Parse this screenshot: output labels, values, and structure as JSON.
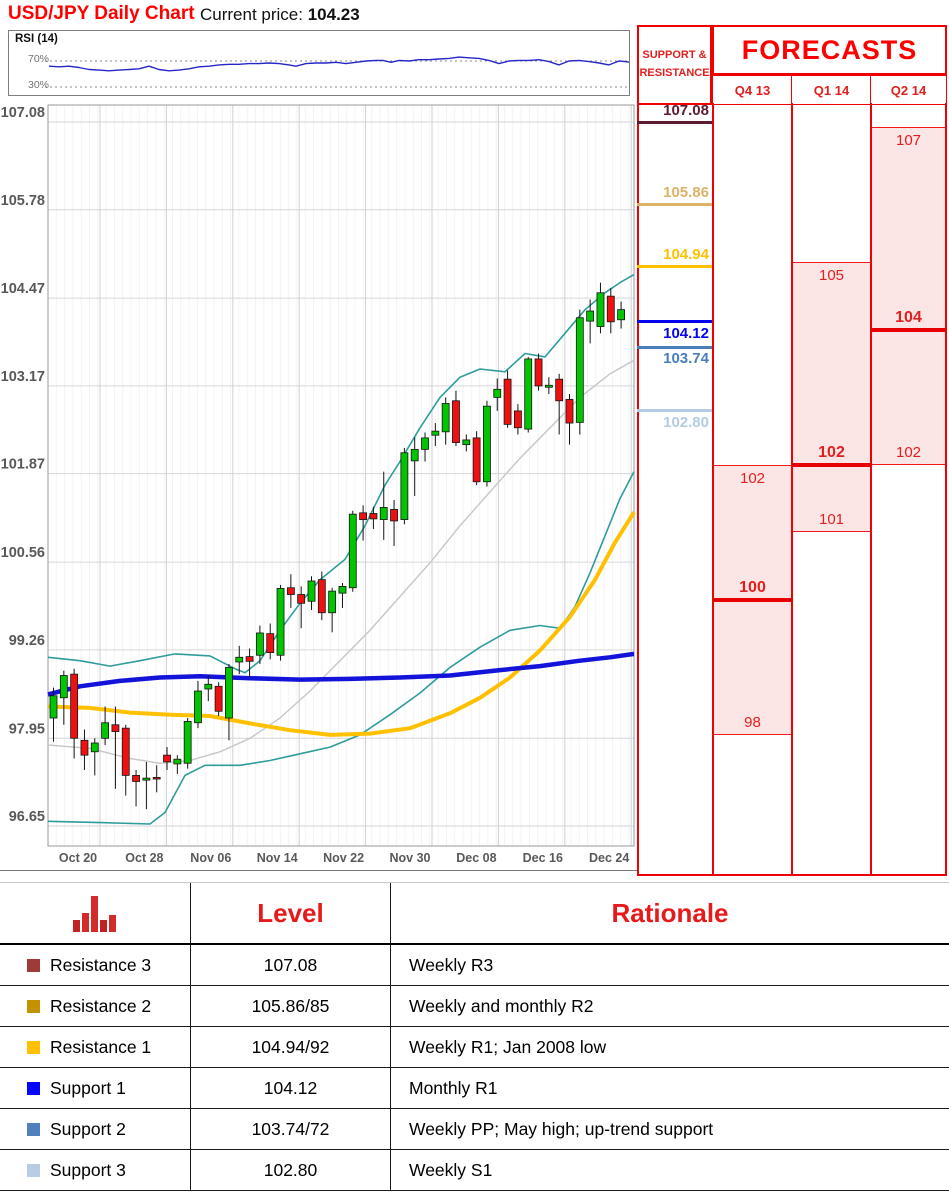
{
  "header": {
    "title": "USD/JPY Daily Chart",
    "price_label": "Current price:",
    "price": "104.23"
  },
  "rsi": {
    "label": "RSI (14)",
    "upper": "70%",
    "lower": "30%",
    "series": [
      [
        48,
        62
      ],
      [
        58,
        61
      ],
      [
        68,
        62
      ],
      [
        78,
        60
      ],
      [
        88,
        57
      ],
      [
        98,
        56
      ],
      [
        108,
        55
      ],
      [
        118,
        56
      ],
      [
        128,
        57
      ],
      [
        138,
        58
      ],
      [
        148,
        62
      ],
      [
        158,
        57
      ],
      [
        168,
        55
      ],
      [
        178,
        56
      ],
      [
        188,
        58
      ],
      [
        198,
        61
      ],
      [
        208,
        62
      ],
      [
        218,
        64
      ],
      [
        228,
        65
      ],
      [
        238,
        65
      ],
      [
        248,
        66
      ],
      [
        258,
        66
      ],
      [
        268,
        67
      ],
      [
        278,
        66
      ],
      [
        288,
        64
      ],
      [
        295,
        62
      ],
      [
        305,
        66
      ],
      [
        315,
        67
      ],
      [
        325,
        67
      ],
      [
        335,
        68
      ],
      [
        345,
        66
      ],
      [
        355,
        68
      ],
      [
        365,
        70
      ],
      [
        375,
        71
      ],
      [
        382,
        71
      ],
      [
        390,
        68
      ],
      [
        398,
        71
      ],
      [
        408,
        70
      ],
      [
        418,
        72
      ],
      [
        428,
        72
      ],
      [
        438,
        73
      ],
      [
        448,
        74
      ],
      [
        458,
        76
      ],
      [
        468,
        75
      ],
      [
        478,
        74
      ],
      [
        488,
        71
      ],
      [
        498,
        66
      ],
      [
        508,
        70
      ],
      [
        518,
        71
      ],
      [
        528,
        71
      ],
      [
        538,
        72
      ],
      [
        548,
        69
      ],
      [
        558,
        64
      ],
      [
        568,
        70
      ],
      [
        578,
        71
      ],
      [
        588,
        69
      ],
      [
        598,
        67
      ],
      [
        608,
        64
      ],
      [
        618,
        70
      ],
      [
        624,
        69
      ],
      [
        630,
        68
      ]
    ]
  },
  "chart_data": {
    "type": "candlestick",
    "title": "USD/JPY Daily Chart",
    "y_ticks": [
      "107.08",
      "105.78",
      "104.47",
      "103.17",
      "101.87",
      "100.56",
      "99.26",
      "97.95",
      "96.65"
    ],
    "x_ticks": [
      "Oct 20",
      "Oct 28",
      "Nov 06",
      "Nov 14",
      "Nov 22",
      "Nov 30",
      "Dec 08",
      "Dec 16",
      "Dec 24"
    ],
    "ylim": [
      96.65,
      107.08
    ],
    "candles": [
      [
        98.25,
        98.7,
        97.9,
        98.58
      ],
      [
        98.55,
        98.95,
        98.15,
        98.88
      ],
      [
        98.9,
        98.98,
        97.65,
        97.95
      ],
      [
        97.92,
        98.08,
        97.48,
        97.7
      ],
      [
        97.75,
        97.95,
        97.4,
        97.88
      ],
      [
        97.95,
        98.42,
        97.85,
        98.18
      ],
      [
        98.15,
        98.42,
        97.2,
        98.05
      ],
      [
        98.1,
        98.15,
        97.1,
        97.4
      ],
      [
        97.4,
        97.48,
        96.94,
        97.31
      ],
      [
        97.33,
        97.6,
        96.9,
        97.36
      ],
      [
        97.37,
        97.55,
        97.15,
        97.35
      ],
      [
        97.7,
        97.82,
        97.48,
        97.6
      ],
      [
        97.57,
        97.7,
        97.42,
        97.64
      ],
      [
        97.58,
        98.25,
        97.5,
        98.2
      ],
      [
        98.18,
        98.8,
        98.1,
        98.65
      ],
      [
        98.68,
        98.88,
        98.5,
        98.75
      ],
      [
        98.72,
        98.78,
        98.28,
        98.35
      ],
      [
        98.25,
        99.05,
        97.92,
        99.0
      ],
      [
        99.08,
        99.32,
        98.9,
        99.15
      ],
      [
        99.16,
        99.28,
        98.85,
        99.09
      ],
      [
        99.18,
        99.62,
        99.05,
        99.51
      ],
      [
        99.5,
        99.65,
        99.12,
        99.22
      ],
      [
        99.18,
        100.22,
        99.1,
        100.17
      ],
      [
        100.18,
        100.38,
        99.88,
        100.08
      ],
      [
        100.08,
        100.2,
        99.58,
        99.95
      ],
      [
        99.98,
        100.35,
        99.85,
        100.28
      ],
      [
        100.3,
        100.42,
        99.7,
        99.81
      ],
      [
        99.81,
        100.18,
        99.52,
        100.13
      ],
      [
        100.1,
        100.25,
        99.88,
        100.2
      ],
      [
        100.18,
        101.32,
        100.12,
        101.27
      ],
      [
        101.29,
        101.4,
        100.88,
        101.19
      ],
      [
        101.28,
        101.38,
        101.05,
        101.2
      ],
      [
        101.19,
        101.9,
        100.89,
        101.37
      ],
      [
        101.34,
        101.48,
        100.8,
        101.17
      ],
      [
        101.19,
        102.25,
        101.12,
        102.18
      ],
      [
        102.06,
        102.41,
        101.54,
        102.23
      ],
      [
        102.23,
        102.48,
        102.05,
        102.4
      ],
      [
        102.44,
        102.62,
        102.28,
        102.5
      ],
      [
        102.49,
        103.0,
        102.3,
        102.91
      ],
      [
        102.95,
        103.1,
        102.28,
        102.33
      ],
      [
        102.3,
        102.45,
        102.2,
        102.37
      ],
      [
        102.4,
        102.5,
        101.7,
        101.75
      ],
      [
        101.75,
        102.95,
        101.68,
        102.87
      ],
      [
        103.0,
        103.28,
        102.8,
        103.12
      ],
      [
        103.27,
        103.4,
        102.55,
        102.6
      ],
      [
        102.8,
        102.9,
        102.45,
        102.55
      ],
      [
        102.53,
        103.6,
        102.48,
        103.57
      ],
      [
        103.57,
        103.65,
        103.1,
        103.17
      ],
      [
        103.15,
        103.3,
        103.05,
        103.18
      ],
      [
        103.27,
        103.35,
        102.45,
        102.95
      ],
      [
        102.97,
        103.05,
        102.3,
        102.62
      ],
      [
        102.63,
        104.3,
        102.45,
        104.18
      ],
      [
        104.13,
        104.45,
        103.8,
        104.28
      ],
      [
        104.05,
        104.7,
        103.95,
        104.55
      ],
      [
        104.5,
        104.62,
        103.95,
        104.12
      ],
      [
        104.15,
        104.42,
        104.02,
        104.3
      ]
    ],
    "overlays": {
      "ma_blue": [
        [
          48,
          98.6
        ],
        [
          80,
          98.72
        ],
        [
          120,
          98.8
        ],
        [
          160,
          98.85
        ],
        [
          200,
          98.87
        ],
        [
          250,
          98.84
        ],
        [
          300,
          98.82
        ],
        [
          350,
          98.83
        ],
        [
          400,
          98.85
        ],
        [
          450,
          98.88
        ],
        [
          500,
          98.96
        ],
        [
          540,
          99.02
        ],
        [
          580,
          99.1
        ],
        [
          610,
          99.15
        ],
        [
          634,
          99.2
        ]
      ],
      "ma_yellow": [
        [
          48,
          98.42
        ],
        [
          90,
          98.4
        ],
        [
          130,
          98.33
        ],
        [
          170,
          98.3
        ],
        [
          210,
          98.28
        ],
        [
          250,
          98.17
        ],
        [
          290,
          98.07
        ],
        [
          330,
          98.0
        ],
        [
          370,
          98.02
        ],
        [
          410,
          98.1
        ],
        [
          450,
          98.32
        ],
        [
          480,
          98.55
        ],
        [
          510,
          98.85
        ],
        [
          540,
          99.25
        ],
        [
          570,
          99.75
        ],
        [
          595,
          100.3
        ],
        [
          615,
          100.85
        ],
        [
          634,
          101.3
        ]
      ],
      "ma_gray": [
        [
          48,
          97.85
        ],
        [
          90,
          97.8
        ],
        [
          130,
          97.65
        ],
        [
          160,
          97.58
        ],
        [
          190,
          97.62
        ],
        [
          220,
          97.75
        ],
        [
          250,
          97.95
        ],
        [
          280,
          98.25
        ],
        [
          310,
          98.65
        ],
        [
          340,
          99.1
        ],
        [
          370,
          99.55
        ],
        [
          400,
          100.05
        ],
        [
          430,
          100.55
        ],
        [
          460,
          101.1
        ],
        [
          490,
          101.6
        ],
        [
          520,
          102.1
        ],
        [
          550,
          102.55
        ],
        [
          580,
          103.0
        ],
        [
          610,
          103.35
        ],
        [
          634,
          103.55
        ]
      ],
      "band_upper": [
        [
          48,
          99.15
        ],
        [
          80,
          99.1
        ],
        [
          110,
          99.02
        ],
        [
          140,
          99.1
        ],
        [
          175,
          99.2
        ],
        [
          210,
          99.17
        ],
        [
          235,
          98.98
        ],
        [
          245,
          98.92
        ],
        [
          260,
          99.1
        ],
        [
          280,
          99.55
        ],
        [
          300,
          99.95
        ],
        [
          320,
          100.3
        ],
        [
          345,
          100.6
        ],
        [
          365,
          101.1
        ],
        [
          385,
          101.7
        ],
        [
          400,
          102.05
        ],
        [
          420,
          102.55
        ],
        [
          440,
          103.0
        ],
        [
          460,
          103.3
        ],
        [
          480,
          103.42
        ],
        [
          505,
          103.38
        ],
        [
          525,
          103.65
        ],
        [
          545,
          103.6
        ],
        [
          565,
          103.95
        ],
        [
          585,
          104.3
        ],
        [
          605,
          104.55
        ],
        [
          620,
          104.7
        ],
        [
          634,
          104.82
        ]
      ],
      "band_lower": [
        [
          48,
          96.72
        ],
        [
          100,
          96.7
        ],
        [
          150,
          96.68
        ],
        [
          165,
          96.85
        ],
        [
          185,
          97.4
        ],
        [
          205,
          97.55
        ],
        [
          240,
          97.55
        ],
        [
          270,
          97.62
        ],
        [
          300,
          97.72
        ],
        [
          330,
          97.82
        ],
        [
          360,
          98.0
        ],
        [
          390,
          98.3
        ],
        [
          420,
          98.62
        ],
        [
          450,
          99.0
        ],
        [
          480,
          99.3
        ],
        [
          510,
          99.55
        ],
        [
          540,
          99.62
        ],
        [
          560,
          99.58
        ],
        [
          575,
          99.9
        ],
        [
          590,
          100.4
        ],
        [
          605,
          100.95
        ],
        [
          620,
          101.5
        ],
        [
          634,
          101.9
        ]
      ]
    }
  },
  "support_resistance": {
    "title": "SUPPORT & RESISTANCE",
    "levels": [
      {
        "label": "107.08",
        "price": 107.08,
        "color": "#5C1A33",
        "label_pos": "above"
      },
      {
        "label": "105.86",
        "price": 105.86,
        "color": "#DDB266",
        "label_pos": "above"
      },
      {
        "label": "104.94",
        "price": 104.94,
        "color": "#FFC000",
        "label_pos": "above"
      },
      {
        "label": "104.12",
        "price": 104.12,
        "color": "#0505EE",
        "label_pos": "below"
      },
      {
        "label": "103.74",
        "price": 103.74,
        "color": "#4A7EBB",
        "label_pos": "below"
      },
      {
        "label": "102.80",
        "price": 102.8,
        "color": "#B3CCE2",
        "label_pos": "below"
      }
    ]
  },
  "forecasts": {
    "title": "FORECASTS",
    "columns": [
      {
        "label": "Q4 13",
        "high": 102,
        "low": 98,
        "point": 100
      },
      {
        "label": "Q1 14",
        "high": 105,
        "low": 101,
        "point": 102
      },
      {
        "label": "Q2 14",
        "high": 107,
        "low": 102,
        "point": 104
      }
    ]
  },
  "table": {
    "icon": "histogram-icon",
    "level_header": "Level",
    "rationale_header": "Rationale",
    "rows": [
      {
        "name": "Resistance 3",
        "swatch_color": "#9E3A38",
        "level": "107.08",
        "rationale": "Weekly R3"
      },
      {
        "name": "Resistance 2",
        "swatch_color": "#C39200",
        "level": "105.86/85",
        "rationale": "Weekly and monthly R2"
      },
      {
        "name": "Resistance 1",
        "swatch_color": "#FFC000",
        "level": "104.94/92",
        "rationale": "Weekly R1; Jan 2008 low"
      },
      {
        "name": "Support 1",
        "swatch_color": "#0404FF",
        "level": "104.12",
        "rationale": "Monthly R1"
      },
      {
        "name": "Support 2",
        "swatch_color": "#4F81BD",
        "level": "103.74/72",
        "rationale": "Weekly PP; May high; up-trend support"
      },
      {
        "name": "Support 3",
        "swatch_color": "#B8CCE4",
        "level": "102.80",
        "rationale": "Weekly S1"
      }
    ]
  }
}
